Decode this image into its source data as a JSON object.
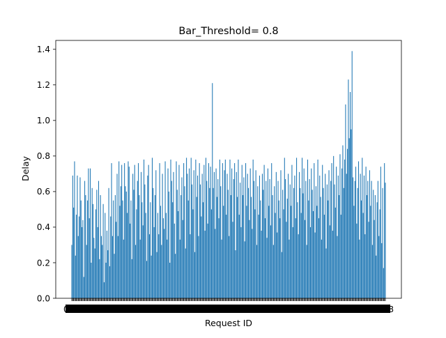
{
  "chart_data": {
    "type": "bar",
    "title": "Bar_Threshold= 0.8",
    "xlabel": "Request ID",
    "ylabel": "Delay",
    "ylim": [
      0,
      1.45
    ],
    "yticks": [
      0.0,
      0.2,
      0.4,
      0.6,
      0.8,
      1.0,
      1.2,
      1.4
    ],
    "ytick_labels": [
      "0.0",
      "0.2",
      "0.4",
      "0.6",
      "0.8",
      "1.0",
      "1.2",
      "1.4"
    ],
    "x_start": 0,
    "x_end_label": "8",
    "bar_color": "#1f77b4",
    "grid": false,
    "values": [
      0.3,
      0.69,
      0.51,
      0.77,
      0.24,
      0.47,
      0.69,
      0.35,
      0.46,
      0.68,
      0.55,
      0.4,
      0.44,
      0.12,
      0.66,
      0.58,
      0.3,
      0.55,
      0.73,
      0.45,
      0.73,
      0.2,
      0.62,
      0.53,
      0.34,
      0.28,
      0.5,
      0.61,
      0.4,
      0.66,
      0.22,
      0.58,
      0.35,
      0.3,
      0.53,
      0.09,
      0.48,
      0.2,
      0.38,
      0.27,
      0.62,
      0.18,
      0.46,
      0.76,
      0.35,
      0.55,
      0.25,
      0.58,
      0.43,
      0.7,
      0.35,
      0.77,
      0.52,
      0.63,
      0.75,
      0.55,
      0.33,
      0.76,
      0.63,
      0.6,
      0.48,
      0.77,
      0.74,
      0.42,
      0.55,
      0.22,
      0.7,
      0.61,
      0.75,
      0.3,
      0.5,
      0.66,
      0.76,
      0.58,
      0.33,
      0.71,
      0.54,
      0.41,
      0.78,
      0.64,
      0.48,
      0.21,
      0.69,
      0.75,
      0.36,
      0.54,
      0.24,
      0.79,
      0.62,
      0.4,
      0.58,
      0.72,
      0.26,
      0.48,
      0.36,
      0.76,
      0.52,
      0.3,
      0.7,
      0.45,
      0.39,
      0.77,
      0.48,
      0.33,
      0.73,
      0.6,
      0.2,
      0.78,
      0.66,
      0.54,
      0.71,
      0.42,
      0.25,
      0.77,
      0.61,
      0.49,
      0.75,
      0.33,
      0.58,
      0.68,
      0.44,
      0.76,
      0.63,
      0.28,
      0.79,
      0.7,
      0.55,
      0.73,
      0.36,
      0.79,
      0.64,
      0.5,
      0.72,
      0.26,
      0.78,
      0.57,
      0.69,
      0.35,
      0.76,
      0.64,
      0.46,
      0.7,
      0.54,
      0.75,
      0.38,
      0.79,
      0.66,
      0.42,
      0.76,
      0.62,
      0.74,
      0.5,
      1.21,
      0.62,
      0.71,
      0.39,
      0.73,
      0.57,
      0.67,
      0.45,
      0.78,
      0.63,
      0.33,
      0.76,
      0.52,
      0.72,
      0.78,
      0.47,
      0.7,
      0.61,
      0.35,
      0.78,
      0.58,
      0.73,
      0.43,
      0.67,
      0.76,
      0.27,
      0.71,
      0.57,
      0.78,
      0.47,
      0.65,
      0.4,
      0.75,
      0.58,
      0.68,
      0.32,
      0.76,
      0.52,
      0.7,
      0.62,
      0.44,
      0.73,
      0.57,
      0.39,
      0.78,
      0.66,
      0.5,
      0.72,
      0.3,
      0.63,
      0.47,
      0.69,
      0.55,
      0.38,
      0.7,
      0.61,
      0.75,
      0.45,
      0.66,
      0.34,
      0.73,
      0.52,
      0.67,
      0.41,
      0.76,
      0.58,
      0.3,
      0.63,
      0.48,
      0.71,
      0.37,
      0.66,
      0.55,
      0.45,
      0.72,
      0.26,
      0.61,
      0.5,
      0.79,
      0.67,
      0.43,
      0.56,
      0.7,
      0.33,
      0.64,
      0.52,
      0.75,
      0.4,
      0.62,
      0.69,
      0.45,
      0.79,
      0.54,
      0.36,
      0.71,
      0.62,
      0.48,
      0.79,
      0.59,
      0.73,
      0.44,
      0.66,
      0.3,
      0.78,
      0.55,
      0.67,
      0.4,
      0.73,
      0.61,
      0.49,
      0.76,
      0.37,
      0.63,
      0.52,
      0.78,
      0.45,
      0.69,
      0.57,
      0.33,
      0.75,
      0.62,
      0.47,
      0.7,
      0.28,
      0.64,
      0.55,
      0.72,
      0.41,
      0.66,
      0.76,
      0.38,
      0.8,
      0.64,
      0.51,
      0.74,
      0.35,
      0.69,
      0.58,
      0.81,
      0.47,
      0.73,
      0.86,
      0.62,
      0.78,
      1.09,
      0.7,
      0.84,
      1.23,
      0.9,
      1.16,
      0.95,
      1.39,
      0.68,
      0.52,
      0.66,
      0.74,
      0.42,
      0.62,
      0.77,
      0.33,
      0.7,
      0.55,
      0.79,
      0.48,
      0.69,
      0.36,
      0.74,
      0.58,
      0.66,
      0.43,
      0.72,
      0.52,
      0.66,
      0.3,
      0.61,
      0.44,
      0.58,
      0.24,
      0.54,
      0.66,
      0.35,
      0.5,
      0.74,
      0.31,
      0.62,
      0.17,
      0.76,
      0.65
    ]
  }
}
